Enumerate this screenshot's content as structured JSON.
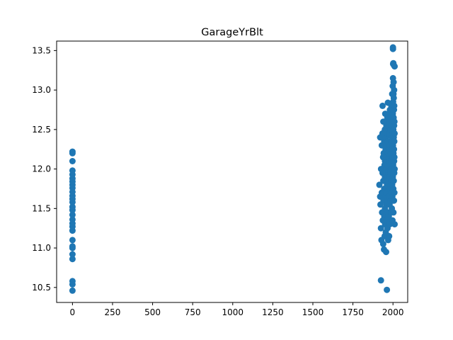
{
  "chart_data": {
    "type": "scatter",
    "title": "GarageYrBlt",
    "xlabel": "",
    "ylabel": "",
    "xlim": [
      -98.85,
      2091.85
    ],
    "ylim": [
      10.31,
      13.62
    ],
    "x_ticks": [
      0,
      250,
      500,
      750,
      1000,
      1250,
      1500,
      1750,
      2000
    ],
    "x_tick_labels": [
      "0",
      "250",
      "500",
      "750",
      "1000",
      "1250",
      "1500",
      "1750",
      "2000"
    ],
    "y_ticks": [
      10.5,
      11.0,
      11.5,
      12.0,
      12.5,
      13.0,
      13.5
    ],
    "y_tick_labels": [
      "10.5",
      "11.0",
      "11.5",
      "12.0",
      "12.5",
      "13.0",
      "13.5"
    ],
    "grid": false,
    "marker_color": "#1f77b4",
    "points": [
      [
        0,
        10.46
      ],
      [
        0,
        10.54
      ],
      [
        0,
        10.58
      ],
      [
        0,
        10.86
      ],
      [
        0,
        10.92
      ],
      [
        0,
        11.0
      ],
      [
        0,
        11.02
      ],
      [
        0,
        11.1
      ],
      [
        0,
        11.22
      ],
      [
        0,
        11.27
      ],
      [
        0,
        11.31
      ],
      [
        0,
        11.36
      ],
      [
        0,
        11.42
      ],
      [
        0,
        11.48
      ],
      [
        0,
        11.52
      ],
      [
        0,
        11.58
      ],
      [
        0,
        11.62
      ],
      [
        0,
        11.66
      ],
      [
        0,
        11.71
      ],
      [
        0,
        11.76
      ],
      [
        0,
        11.8
      ],
      [
        0,
        11.84
      ],
      [
        0,
        11.88
      ],
      [
        0,
        11.93
      ],
      [
        0,
        11.98
      ],
      [
        0,
        12.1
      ],
      [
        0,
        12.2
      ],
      [
        0,
        12.22
      ],
      [
        1915,
        11.8
      ],
      [
        1920,
        11.65
      ],
      [
        1920,
        12.4
      ],
      [
        1922,
        11.55
      ],
      [
        1925,
        11.25
      ],
      [
        1925,
        10.59
      ],
      [
        1926,
        12.0
      ],
      [
        1928,
        11.1
      ],
      [
        1930,
        11.7
      ],
      [
        1930,
        12.3
      ],
      [
        1932,
        11.45
      ],
      [
        1934,
        12.45
      ],
      [
        1935,
        11.95
      ],
      [
        1935,
        12.8
      ],
      [
        1937,
        11.35
      ],
      [
        1938,
        12.15
      ],
      [
        1939,
        11.05
      ],
      [
        1940,
        11.85
      ],
      [
        1940,
        12.6
      ],
      [
        1941,
        11.6
      ],
      [
        1942,
        12.2
      ],
      [
        1944,
        10.98
      ],
      [
        1945,
        11.75
      ],
      [
        1945,
        12.35
      ],
      [
        1946,
        11.4
      ],
      [
        1947,
        12.05
      ],
      [
        1948,
        11.15
      ],
      [
        1949,
        12.5
      ],
      [
        1950,
        11.9
      ],
      [
        1950,
        11.5
      ],
      [
        1950,
        12.1
      ],
      [
        1951,
        11.3
      ],
      [
        1952,
        12.7
      ],
      [
        1953,
        11.65
      ],
      [
        1954,
        12.25
      ],
      [
        1955,
        11.85
      ],
      [
        1955,
        11.2
      ],
      [
        1956,
        12.4
      ],
      [
        1957,
        10.95
      ],
      [
        1958,
        11.7
      ],
      [
        1958,
        12.0
      ],
      [
        1959,
        12.55
      ],
      [
        1960,
        11.95
      ],
      [
        1960,
        11.55
      ],
      [
        1960,
        12.3
      ],
      [
        1961,
        11.35
      ],
      [
        1962,
        12.15
      ],
      [
        1962,
        10.47
      ],
      [
        1963,
        11.8
      ],
      [
        1964,
        12.45
      ],
      [
        1965,
        11.6
      ],
      [
        1965,
        12.05
      ],
      [
        1965,
        12.65
      ],
      [
        1966,
        11.25
      ],
      [
        1967,
        11.9
      ],
      [
        1968,
        12.35
      ],
      [
        1968,
        12.84
      ],
      [
        1969,
        11.45
      ],
      [
        1970,
        11.75
      ],
      [
        1970,
        12.2
      ],
      [
        1970,
        11.1
      ],
      [
        1971,
        12.55
      ],
      [
        1972,
        11.95
      ],
      [
        1973,
        12.7
      ],
      [
        1974,
        11.4
      ],
      [
        1975,
        11.85
      ],
      [
        1975,
        12.25
      ],
      [
        1976,
        12.6
      ],
      [
        1976,
        11.15
      ],
      [
        1977,
        11.65
      ],
      [
        1978,
        12.1
      ],
      [
        1978,
        12.45
      ],
      [
        1979,
        11.55
      ],
      [
        1980,
        11.9
      ],
      [
        1980,
        12.3
      ],
      [
        1980,
        11.3
      ],
      [
        1981,
        12.75
      ],
      [
        1982,
        11.75
      ],
      [
        1983,
        12.05
      ],
      [
        1984,
        12.5
      ],
      [
        1985,
        11.6
      ],
      [
        1985,
        12.2
      ],
      [
        1986,
        11.95
      ],
      [
        1987,
        12.65
      ],
      [
        1988,
        11.45
      ],
      [
        1989,
        12.35
      ],
      [
        1990,
        11.85
      ],
      [
        1990,
        12.1
      ],
      [
        1990,
        12.8
      ],
      [
        1991,
        11.7
      ],
      [
        1992,
        12.55
      ],
      [
        1993,
        12.0
      ],
      [
        1993,
        11.5
      ],
      [
        1994,
        12.4
      ],
      [
        1995,
        11.8
      ],
      [
        1995,
        12.25
      ],
      [
        1995,
        12.95
      ],
      [
        1996,
        11.65
      ],
      [
        1996,
        12.6
      ],
      [
        1997,
        12.15
      ],
      [
        1997,
        11.35
      ],
      [
        1998,
        12.45
      ],
      [
        1998,
        13.05
      ],
      [
        1999,
        11.9
      ],
      [
        1999,
        12.7
      ],
      [
        2000,
        12.3
      ],
      [
        2000,
        11.6
      ],
      [
        2000,
        13.15
      ],
      [
        2000,
        13.52
      ],
      [
        2001,
        12.05
      ],
      [
        2001,
        12.85
      ],
      [
        2002,
        11.75
      ],
      [
        2002,
        12.5
      ],
      [
        2002,
        13.34
      ],
      [
        2003,
        12.2
      ],
      [
        2003,
        12.95
      ],
      [
        2003,
        11.45
      ],
      [
        2004,
        12.65
      ],
      [
        2004,
        12.0
      ],
      [
        2004,
        13.1
      ],
      [
        2005,
        11.85
      ],
      [
        2005,
        12.4
      ],
      [
        2005,
        12.9
      ],
      [
        2006,
        12.25
      ],
      [
        2006,
        11.6
      ],
      [
        2006,
        12.75
      ],
      [
        2007,
        12.1
      ],
      [
        2007,
        12.55
      ],
      [
        2007,
        13.0
      ],
      [
        2008,
        11.95
      ],
      [
        2008,
        12.35
      ],
      [
        2008,
        12.8
      ],
      [
        2009,
        12.15
      ],
      [
        2009,
        11.7
      ],
      [
        2009,
        12.6
      ],
      [
        2010,
        12.0
      ],
      [
        2010,
        12.45
      ],
      [
        2010,
        11.3
      ],
      [
        2010,
        13.3
      ],
      [
        2000,
        13.54
      ],
      [
        2001,
        13.33
      ],
      [
        2004,
        13.32
      ]
    ]
  }
}
